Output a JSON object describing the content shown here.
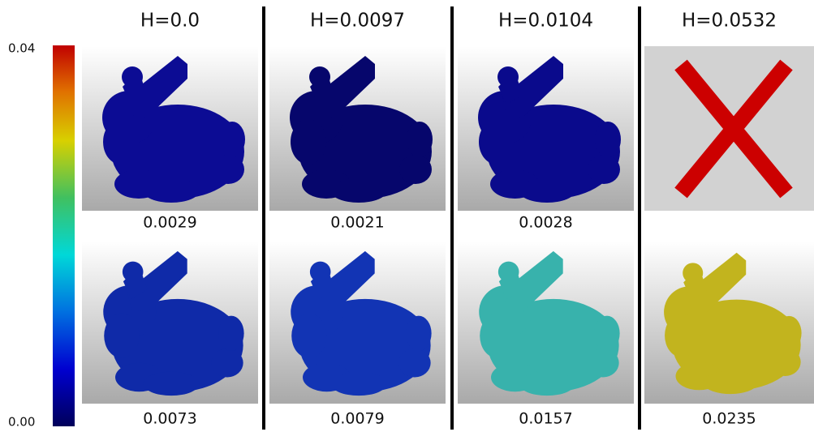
{
  "colorbar": {
    "max_label": "0.04",
    "min_label": "0.00"
  },
  "columns": [
    {
      "header": "H=0.0",
      "top_label": "0.0029",
      "bottom_label": "0.0073"
    },
    {
      "header": "H=0.0097",
      "top_label": "0.0021",
      "bottom_label": "0.0079"
    },
    {
      "header": "H=0.0104",
      "top_label": "0.0028",
      "bottom_label": "0.0157"
    },
    {
      "header": "H=0.0532",
      "bottom_label": "0.0235"
    }
  ]
}
